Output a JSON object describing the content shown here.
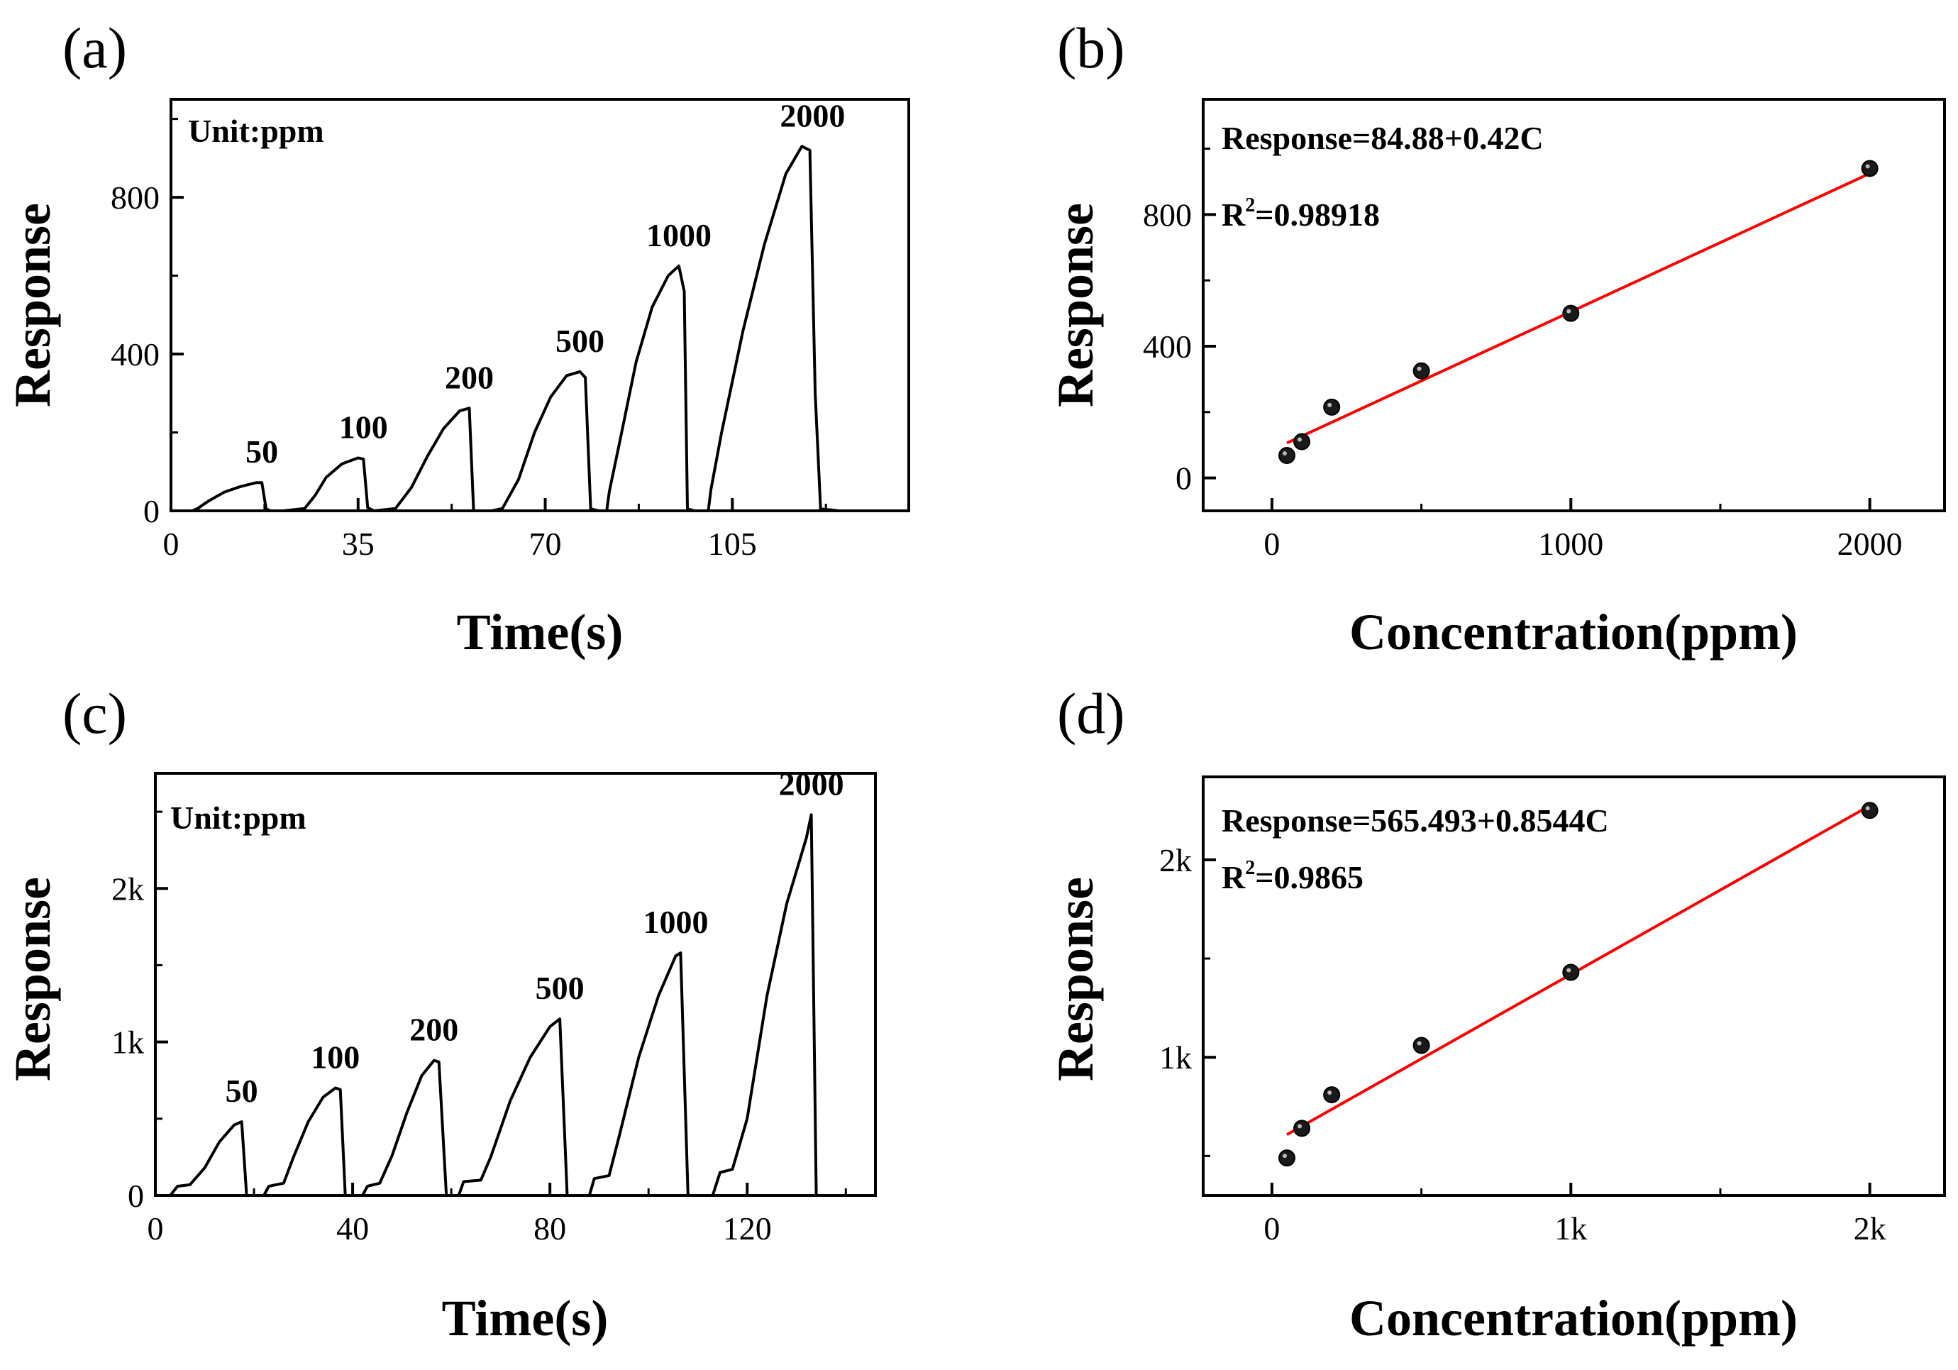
{
  "figure": {
    "panels": [
      "(a)",
      "(b)",
      "(c)",
      "(d)"
    ]
  },
  "chart_data": [
    {
      "id": "a",
      "panel_label": "(a)",
      "type": "line",
      "title": "",
      "xlabel": "Time(s)",
      "ylabel": "Response",
      "xlim": [
        0,
        138
      ],
      "ylim": [
        0,
        1050
      ],
      "xticks": [
        0,
        35,
        70,
        105
      ],
      "xtick_labels": [
        "0",
        "35",
        "70",
        "105"
      ],
      "yticks": [
        0,
        400,
        800
      ],
      "ytick_labels": [
        "0",
        "400",
        "800"
      ],
      "unit_label": "Unit:ppm",
      "line_color": "#000000",
      "series": [
        {
          "name": "response",
          "x": [
            0,
            4,
            5,
            7,
            10,
            13,
            16,
            17,
            17.8,
            18.6,
            21,
            25,
            27,
            29,
            32,
            35,
            36,
            36.8,
            38,
            42,
            45,
            48,
            51,
            54,
            55.8,
            56.6,
            60,
            62,
            65,
            68,
            71,
            74,
            76.5,
            77.5,
            78.5,
            80,
            81.5,
            82,
            84,
            87,
            90,
            93,
            95,
            96,
            96.6,
            98,
            100.5,
            101,
            103,
            107,
            111,
            115,
            118,
            119.5,
            120.5,
            121.5,
            125,
            128
          ],
          "y": [
            0,
            0,
            6,
            25,
            48,
            62,
            72,
            72,
            5,
            0,
            0,
            6,
            40,
            85,
            120,
            135,
            132,
            8,
            0,
            6,
            60,
            140,
            210,
            255,
            262,
            0,
            0,
            6,
            80,
            200,
            290,
            345,
            355,
            340,
            5,
            0,
            0,
            50,
            180,
            380,
            520,
            600,
            625,
            560,
            5,
            0,
            0,
            55,
            200,
            460,
            680,
            860,
            930,
            920,
            300,
            5,
            0,
            0
          ]
        }
      ],
      "annotations": [
        {
          "text": "50",
          "x": 17,
          "y": 72
        },
        {
          "text": "100",
          "x": 36,
          "y": 135
        },
        {
          "text": "200",
          "x": 55.8,
          "y": 262
        },
        {
          "text": "500",
          "x": 76.5,
          "y": 355
        },
        {
          "text": "1000",
          "x": 95,
          "y": 625
        },
        {
          "text": "2000",
          "x": 120,
          "y": 930
        }
      ]
    },
    {
      "id": "b",
      "panel_label": "(b)",
      "type": "scatter",
      "title": "",
      "xlabel": "Concentration(ppm)",
      "ylabel": "Response",
      "xlim": [
        -230,
        2250
      ],
      "ylim": [
        -100,
        1150
      ],
      "xticks": [
        0,
        1000,
        2000
      ],
      "xtick_labels": [
        "0",
        "1000",
        "2000"
      ],
      "yticks": [
        0,
        400,
        800
      ],
      "ytick_labels": [
        "0",
        "400",
        "800"
      ],
      "points": {
        "x": [
          50,
          100,
          200,
          500,
          1000,
          2000
        ],
        "y": [
          68,
          110,
          215,
          325,
          500,
          940
        ]
      },
      "fit": {
        "intercept": 84.88,
        "slope": 0.42,
        "x_range": [
          50,
          2000
        ],
        "color": "#ff0000"
      },
      "equation_text": "Response=84.88+0.42C",
      "r2_prefix": "R",
      "r2_sup": "2",
      "r2_value": "=0.98918"
    },
    {
      "id": "c",
      "panel_label": "(c)",
      "type": "line",
      "title": "",
      "xlabel": "Time(s)",
      "ylabel": "Response",
      "xlim": [
        0,
        146
      ],
      "ylim": [
        0,
        2750
      ],
      "xticks": [
        0,
        40,
        80,
        120
      ],
      "xtick_labels": [
        "0",
        "40",
        "80",
        "120"
      ],
      "yticks": [
        0,
        1000,
        2000
      ],
      "ytick_labels": [
        "0",
        "1k",
        "2k"
      ],
      "unit_label": "Unit:ppm",
      "line_color": "#000000",
      "series": [
        {
          "name": "response",
          "x": [
            0,
            3,
            4.5,
            7,
            10,
            13,
            16,
            17.5,
            18.5,
            20,
            22,
            23,
            26,
            28,
            31,
            34,
            36.5,
            37.5,
            38.5,
            42,
            43,
            45.5,
            48,
            51,
            54,
            56.5,
            57.5,
            59,
            61.5,
            62.5,
            66,
            68,
            72,
            76,
            80,
            82,
            83.5,
            88,
            89,
            92,
            94,
            98,
            102,
            105.5,
            106.5,
            108,
            113,
            114.5,
            117,
            120,
            124,
            128,
            132,
            133,
            134,
            146
          ],
          "y": [
            0,
            0,
            60,
            70,
            180,
            350,
            460,
            480,
            0,
            0,
            0,
            60,
            80,
            250,
            480,
            640,
            700,
            690,
            0,
            0,
            60,
            80,
            260,
            540,
            780,
            880,
            870,
            0,
            0,
            90,
            100,
            250,
            620,
            900,
            1100,
            1150,
            0,
            0,
            110,
            130,
            380,
            900,
            1300,
            1560,
            1580,
            0,
            0,
            150,
            170,
            500,
            1300,
            1900,
            2330,
            2480,
            0,
            0
          ]
        }
      ],
      "annotations": [
        {
          "text": "50",
          "x": 17.5,
          "y": 480
        },
        {
          "text": "100",
          "x": 36.5,
          "y": 700
        },
        {
          "text": "200",
          "x": 56.5,
          "y": 880
        },
        {
          "text": "500",
          "x": 82,
          "y": 1150
        },
        {
          "text": "1000",
          "x": 105.5,
          "y": 1580
        },
        {
          "text": "2000",
          "x": 133,
          "y": 2480
        }
      ]
    },
    {
      "id": "d",
      "panel_label": "(d)",
      "type": "scatter",
      "title": "",
      "xlabel": "Concentration(ppm)",
      "ylabel": "Response",
      "xlim": [
        -230,
        2250
      ],
      "ylim": [
        300,
        2420
      ],
      "xticks": [
        0,
        1000,
        2000
      ],
      "xtick_labels": [
        "0",
        "1k",
        "2k"
      ],
      "yticks": [
        1000,
        2000
      ],
      "ytick_labels": [
        "1k",
        "2k"
      ],
      "points": {
        "x": [
          50,
          100,
          200,
          500,
          1000,
          2000
        ],
        "y": [
          490,
          640,
          810,
          1060,
          1430,
          2250
        ]
      },
      "fit": {
        "intercept": 565.493,
        "slope": 0.8544,
        "x_range": [
          50,
          2000
        ],
        "color": "#ff0000"
      },
      "equation_text": "Response=565.493+0.8544C",
      "r2_prefix": "R",
      "r2_sup": "2",
      "r2_value": "=0.9865"
    }
  ]
}
